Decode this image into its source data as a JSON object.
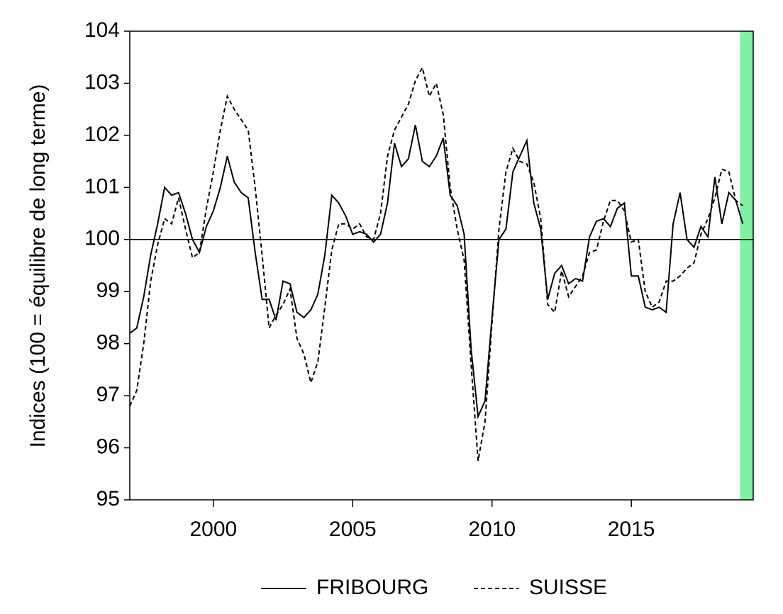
{
  "chart_data": {
    "type": "line",
    "y_label": "Indices (100 = équilibre de long terme)",
    "x": [
      1997,
      1997.25,
      1997.5,
      1997.75,
      1998,
      1998.25,
      1998.5,
      1998.75,
      1999,
      1999.25,
      1999.5,
      1999.75,
      2000,
      2000.25,
      2000.5,
      2000.75,
      2001,
      2001.25,
      2001.5,
      2001.75,
      2002,
      2002.25,
      2002.5,
      2002.75,
      2003,
      2003.25,
      2003.5,
      2003.75,
      2004,
      2004.25,
      2004.5,
      2004.75,
      2005,
      2005.25,
      2005.5,
      2005.75,
      2006,
      2006.25,
      2006.5,
      2006.75,
      2007,
      2007.25,
      2007.5,
      2007.75,
      2008,
      2008.25,
      2008.5,
      2008.75,
      2009,
      2009.25,
      2009.5,
      2009.75,
      2010,
      2010.25,
      2010.5,
      2010.75,
      2011,
      2011.25,
      2011.5,
      2011.75,
      2012,
      2012.25,
      2012.5,
      2012.75,
      2013,
      2013.25,
      2013.5,
      2013.75,
      2014,
      2014.25,
      2014.5,
      2014.75,
      2015,
      2015.25,
      2015.5,
      2015.75,
      2016,
      2016.25,
      2016.5,
      2016.75,
      2017,
      2017.25,
      2017.5,
      2017.75,
      2018,
      2018.25,
      2018.5,
      2018.75,
      2019
    ],
    "series": [
      {
        "name": "FRIBOURG",
        "color": "#000000",
        "dash": "solid",
        "values": [
          98.2,
          98.3,
          98.9,
          99.7,
          100.3,
          101.0,
          100.85,
          100.9,
          100.5,
          100.0,
          99.75,
          100.25,
          100.55,
          101.0,
          101.6,
          101.1,
          100.9,
          100.8,
          99.75,
          98.85,
          98.85,
          98.45,
          99.2,
          99.15,
          98.6,
          98.5,
          98.65,
          98.95,
          99.7,
          100.85,
          100.7,
          100.45,
          100.1,
          100.15,
          100.1,
          99.95,
          100.1,
          100.7,
          101.85,
          101.4,
          101.55,
          102.2,
          101.5,
          101.4,
          101.6,
          101.95,
          100.85,
          100.65,
          100.1,
          97.9,
          96.6,
          96.9,
          98.5,
          100.0,
          100.2,
          101.3,
          101.6,
          101.9,
          100.7,
          100.2,
          98.85,
          99.35,
          99.5,
          99.15,
          99.25,
          99.2,
          100.05,
          100.35,
          100.4,
          100.25,
          100.6,
          100.7,
          99.3,
          99.3,
          98.7,
          98.65,
          98.7,
          98.6,
          100.3,
          100.9,
          100.0,
          99.85,
          100.25,
          100.05,
          101.2,
          100.3,
          100.9,
          100.75,
          100.3
        ]
      },
      {
        "name": "SUISSE",
        "color": "#000000",
        "dash": "dashed",
        "values": [
          96.8,
          97.1,
          98.0,
          99.2,
          99.9,
          100.4,
          100.3,
          100.8,
          100.2,
          99.65,
          99.75,
          100.6,
          101.3,
          102.1,
          102.75,
          102.5,
          102.3,
          102.1,
          101.0,
          99.7,
          98.3,
          98.55,
          98.75,
          99.05,
          98.1,
          97.8,
          97.25,
          97.65,
          98.7,
          99.8,
          100.3,
          100.3,
          100.2,
          100.3,
          100.05,
          100.0,
          100.5,
          101.6,
          102.1,
          102.35,
          102.6,
          103.05,
          103.3,
          102.75,
          103.0,
          102.4,
          101.0,
          100.2,
          99.6,
          97.6,
          95.75,
          96.5,
          98.4,
          100.2,
          101.3,
          101.75,
          101.5,
          101.45,
          101.1,
          100.4,
          98.75,
          98.6,
          99.4,
          98.9,
          99.1,
          99.3,
          99.75,
          99.8,
          100.35,
          100.75,
          100.75,
          100.55,
          99.95,
          100.0,
          99.0,
          98.7,
          98.8,
          99.2,
          99.2,
          99.3,
          99.45,
          99.55,
          100.1,
          100.4,
          100.8,
          101.35,
          101.3,
          100.75,
          100.65
        ]
      }
    ],
    "xlim": [
      1997,
      2019.375
    ],
    "xticks": [
      2000,
      2005,
      2010,
      2015
    ],
    "ylim": [
      95,
      104
    ],
    "yticks": [
      95,
      96,
      97,
      98,
      99,
      100,
      101,
      102,
      103,
      104
    ],
    "hline": 100,
    "shade": {
      "from": 2018.9,
      "to": 2019.375,
      "color": "#7ff0a4"
    },
    "legend": "bottom"
  }
}
